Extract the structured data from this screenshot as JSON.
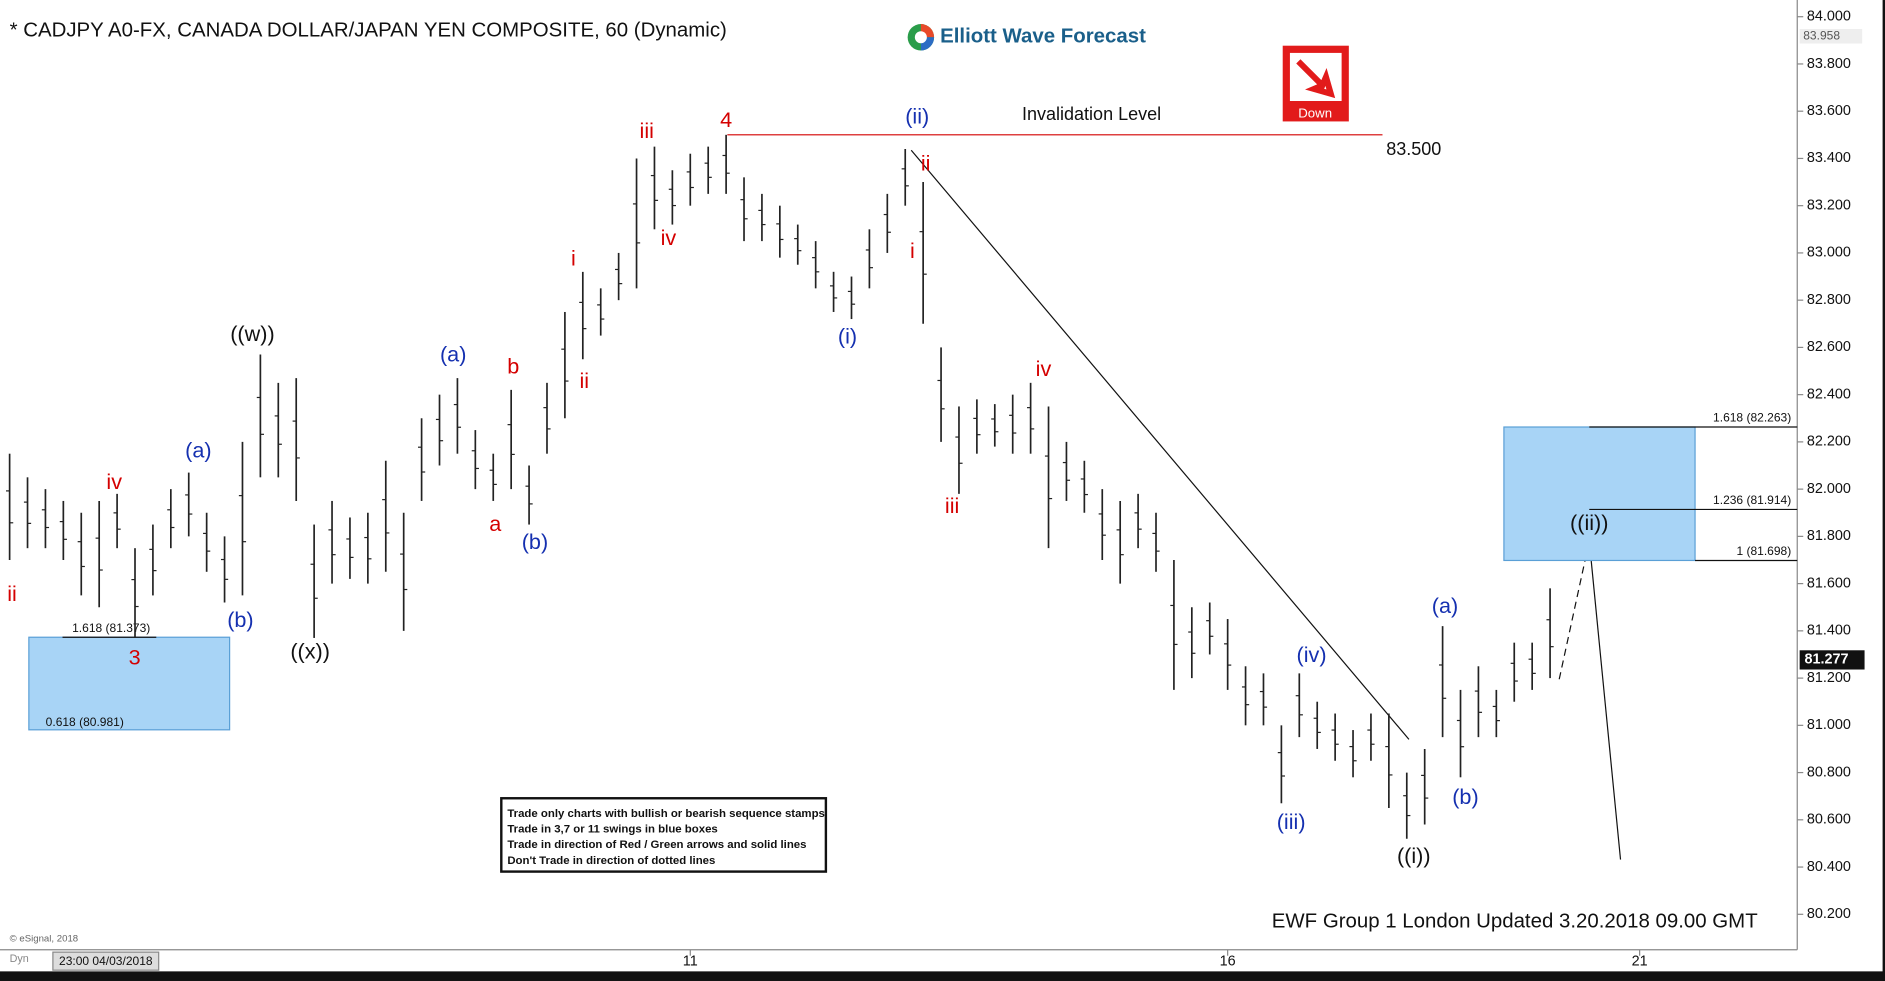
{
  "chart_data": {
    "type": "hilo",
    "title": "* CADJPY A0-FX, CANADA DOLLAR/JAPAN YEN COMPOSITE, 60 (Dynamic)",
    "brand": "Elliott Wave Forecast",
    "signal": "Down",
    "footer": "EWF Group 1 London Updated 3.20.2018 09.00 GMT",
    "copyright": "© eSignal, 2018",
    "mode_label": "Dyn",
    "cursor_time": "23:00 04/03/2018",
    "bar_color": "#222222",
    "categories": [
      null,
      null,
      null,
      null,
      null,
      null,
      null,
      null,
      null,
      null,
      null,
      null,
      null,
      null,
      null,
      null,
      null,
      null,
      null,
      null,
      null,
      null,
      null,
      null,
      null,
      null,
      null,
      null,
      null,
      null,
      null,
      null,
      null,
      null,
      null,
      null,
      null,
      null,
      "11",
      null,
      null,
      null,
      null,
      null,
      null,
      null,
      null,
      null,
      null,
      null,
      null,
      null,
      null,
      null,
      null,
      null,
      null,
      null,
      null,
      null,
      null,
      null,
      null,
      null,
      null,
      null,
      null,
      null,
      "16",
      null,
      null,
      null,
      null,
      null,
      null,
      null,
      null,
      null,
      null,
      null,
      null,
      null,
      null,
      null,
      null,
      null,
      null,
      null,
      null,
      null,
      null,
      "21",
      null,
      null,
      null,
      null,
      null,
      null,
      null,
      null
    ],
    "high": [
      82.15,
      82.05,
      82.0,
      81.95,
      81.9,
      81.95,
      81.98,
      81.75,
      81.85,
      82.0,
      82.07,
      81.9,
      81.8,
      82.2,
      82.57,
      82.45,
      82.47,
      81.85,
      81.95,
      81.88,
      81.9,
      82.12,
      81.9,
      82.3,
      82.4,
      82.47,
      82.25,
      82.15,
      82.42,
      82.1,
      82.45,
      82.75,
      82.92,
      82.85,
      83.0,
      83.4,
      83.45,
      83.35,
      83.42,
      83.45,
      83.5,
      83.32,
      83.25,
      83.2,
      83.12,
      83.05,
      82.92,
      82.9,
      83.1,
      83.25,
      83.44,
      83.3,
      82.6,
      82.35,
      82.38,
      82.36,
      82.4,
      82.45,
      82.35,
      82.2,
      82.12,
      82.0,
      81.95,
      81.98,
      81.9,
      81.7,
      81.5,
      81.52,
      81.45,
      81.25,
      81.22,
      81.0,
      81.22,
      81.1,
      81.05,
      80.98,
      81.05,
      81.05,
      80.8,
      80.9,
      81.42,
      81.15,
      81.25,
      81.15,
      81.35,
      81.35,
      81.58,
      null,
      null,
      null,
      null,
      null,
      null,
      null,
      null,
      null,
      null,
      null,
      null,
      null
    ],
    "low": [
      81.7,
      81.75,
      81.75,
      81.7,
      81.55,
      81.5,
      81.75,
      81.37,
      81.55,
      81.75,
      81.8,
      81.65,
      81.52,
      81.55,
      82.05,
      82.05,
      81.95,
      81.37,
      81.6,
      81.62,
      81.6,
      81.65,
      81.4,
      81.95,
      82.1,
      82.15,
      82.0,
      81.95,
      82.0,
      81.85,
      82.15,
      82.3,
      82.55,
      82.65,
      82.8,
      82.85,
      83.1,
      83.12,
      83.2,
      83.25,
      83.25,
      83.05,
      83.05,
      82.98,
      82.95,
      82.85,
      82.75,
      82.72,
      82.85,
      83.0,
      83.2,
      82.7,
      82.2,
      81.98,
      82.15,
      82.18,
      82.15,
      82.15,
      81.75,
      81.95,
      81.9,
      81.7,
      81.6,
      81.75,
      81.65,
      81.15,
      81.2,
      81.3,
      81.15,
      81.0,
      81.0,
      80.67,
      80.95,
      80.9,
      80.85,
      80.78,
      80.85,
      80.65,
      80.52,
      80.58,
      80.95,
      80.78,
      80.95,
      80.95,
      81.1,
      81.15,
      81.2,
      null,
      null,
      null,
      null,
      null,
      null,
      null,
      null,
      null,
      null,
      null,
      null,
      null
    ],
    "ylim": [
      80.05,
      84.03
    ],
    "yticks": [
      {
        "value": 80.2,
        "label": "80.200"
      },
      {
        "value": 80.4,
        "label": "80.400"
      },
      {
        "value": 80.6,
        "label": "80.600"
      },
      {
        "value": 80.8,
        "label": "80.800"
      },
      {
        "value": 81.0,
        "label": "81.000"
      },
      {
        "value": 81.2,
        "label": "81.200"
      },
      {
        "value": 81.4,
        "label": "81.400"
      },
      {
        "value": 81.6,
        "label": "81.600"
      },
      {
        "value": 81.8,
        "label": "81.800"
      },
      {
        "value": 82.0,
        "label": "82.000"
      },
      {
        "value": 82.2,
        "label": "82.200"
      },
      {
        "value": 82.4,
        "label": "82.400"
      },
      {
        "value": 82.6,
        "label": "82.600"
      },
      {
        "value": 82.8,
        "label": "82.800"
      },
      {
        "value": 83.0,
        "label": "83.000"
      },
      {
        "value": 83.2,
        "label": "83.200"
      },
      {
        "value": 83.4,
        "label": "83.400"
      },
      {
        "value": 83.6,
        "label": "83.600"
      },
      {
        "value": 83.8,
        "label": "83.800"
      },
      {
        "value": 84.0,
        "label": "84.000"
      }
    ],
    "session_high": 83.958,
    "last_price": 81.277,
    "invalidation": {
      "text": "Invalidation Level",
      "value": 83.5,
      "label": "83.500",
      "color": "#d40000"
    },
    "target_box": {
      "color": "#a8d4f6",
      "upper": {
        "value": 82.263,
        "label": "1.618 (82.263)"
      },
      "middle": {
        "value": 81.914,
        "label": "1.236 (81.914)"
      },
      "lower": {
        "value": 81.698,
        "label": "1 (81.698)"
      }
    },
    "past_box": {
      "color": "#a8d4f6",
      "upper": {
        "value": 81.373,
        "label": "1.618 (81.373)"
      },
      "lower": {
        "value": 80.981,
        "label": "0.618 (80.981)"
      }
    },
    "notes": [
      "Trade only charts with bullish or bearish sequence stamps",
      "Trade in 3,7 or 11 swings in blue boxes",
      "Trade in direction of Red / Green arrows and solid lines",
      "Don't Trade in direction of dotted lines"
    ],
    "wave_labels": [
      {
        "text": "ii",
        "color": "#d40000"
      },
      {
        "text": "iv",
        "color": "#d40000"
      },
      {
        "text": "3",
        "color": "#d40000"
      },
      {
        "text": "(a)",
        "color": "#1530b0"
      },
      {
        "text": "(b)",
        "color": "#1530b0"
      },
      {
        "text": "((w))",
        "color": "#111111"
      },
      {
        "text": "((x))",
        "color": "#111111"
      },
      {
        "text": "(a)",
        "color": "#1530b0"
      },
      {
        "text": "a",
        "color": "#d40000"
      },
      {
        "text": "b",
        "color": "#d40000"
      },
      {
        "text": "(b)",
        "color": "#1530b0"
      },
      {
        "text": "i",
        "color": "#d40000"
      },
      {
        "text": "ii",
        "color": "#d40000"
      },
      {
        "text": "iii",
        "color": "#d40000"
      },
      {
        "text": "iv",
        "color": "#d40000"
      },
      {
        "text": "4",
        "color": "#d40000"
      },
      {
        "text": "(i)",
        "color": "#1530b0"
      },
      {
        "text": "(ii)",
        "color": "#1530b0"
      },
      {
        "text": "ii",
        "color": "#d40000"
      },
      {
        "text": "i",
        "color": "#d40000"
      },
      {
        "text": "iii",
        "color": "#d40000"
      },
      {
        "text": "iv",
        "color": "#d40000"
      },
      {
        "text": "(iii)",
        "color": "#1530b0"
      },
      {
        "text": "(iv)",
        "color": "#1530b0"
      },
      {
        "text": "((i))",
        "color": "#111111"
      },
      {
        "text": "(a)",
        "color": "#1530b0"
      },
      {
        "text": "(b)",
        "color": "#1530b0"
      },
      {
        "text": "((ii))",
        "color": "#111111"
      }
    ]
  }
}
